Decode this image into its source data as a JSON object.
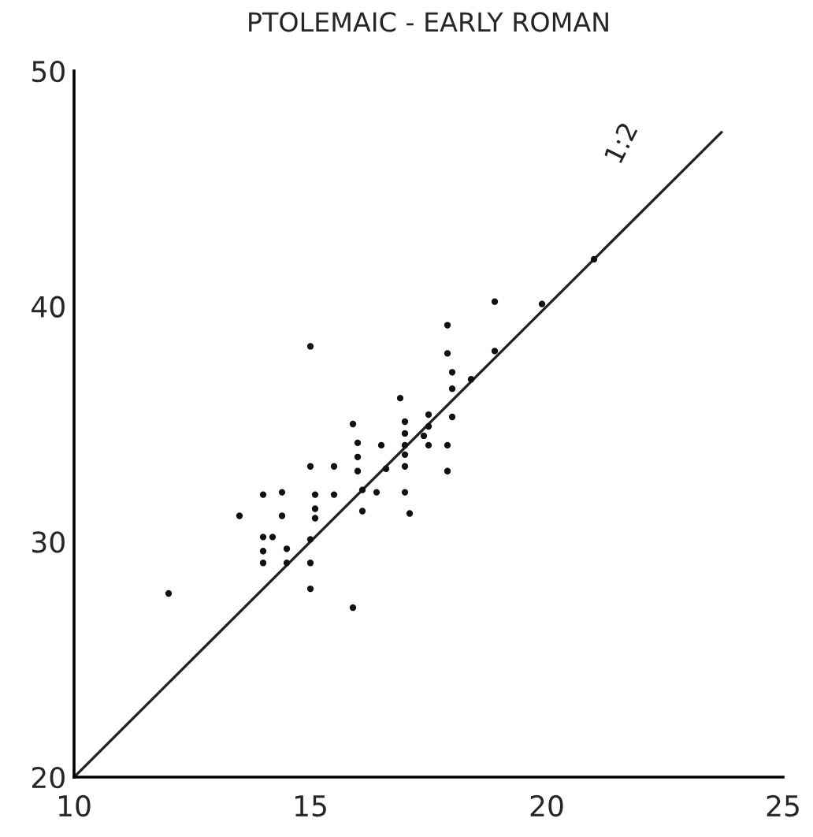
{
  "chart_data": {
    "type": "scatter",
    "title": "PTOLEMAIC - EARLY ROMAN",
    "xlim": [
      10,
      25
    ],
    "xticks": [
      10,
      15,
      20,
      25
    ],
    "ylim": [
      20,
      50
    ],
    "yticks": [
      20,
      30,
      40,
      50
    ],
    "grid": false,
    "legend": false,
    "marker": "circle",
    "series": [
      {
        "color": "#111111",
        "x": [
          12,
          13.5,
          14,
          14,
          14,
          14,
          14.2,
          14.4,
          14.4,
          14.5,
          14.5,
          15,
          15,
          15.1,
          15.1,
          15.1,
          15,
          15,
          15,
          15.5,
          15.5,
          15.9,
          16,
          16,
          16,
          16.1,
          16.4,
          16.1,
          15.9,
          16.5,
          16.6,
          16.9,
          17,
          17,
          17,
          17,
          17,
          17,
          17.1,
          17.5,
          17.5,
          17.4,
          17.5,
          17.9,
          17.9,
          18,
          18,
          18,
          17.9,
          17.9,
          18.4,
          18.9,
          18.9,
          19.9,
          21
        ],
        "values": [
          27.8,
          31.1,
          32.0,
          30.2,
          29.6,
          29.1,
          30.2,
          32.1,
          31.1,
          29.7,
          29.1,
          38.3,
          33.2,
          32.0,
          31.4,
          31.0,
          30.1,
          29.1,
          28.0,
          33.2,
          32.0,
          35.0,
          34.2,
          33.6,
          33.0,
          32.2,
          32.1,
          31.3,
          27.2,
          34.1,
          33.1,
          36.1,
          35.1,
          34.6,
          34.1,
          33.7,
          33.2,
          32.1,
          31.2,
          35.4,
          34.9,
          34.5,
          34.1,
          39.2,
          38.0,
          37.2,
          36.5,
          35.3,
          34.1,
          33.0,
          36.9,
          38.1,
          40.2,
          40.1,
          42.0
        ]
      },
      {
        "type": "line",
        "name": "1:2",
        "color": "#222222",
        "line_style": "solid",
        "marker": "none",
        "x": [
          10,
          23.7
        ],
        "values": [
          20,
          47.4
        ]
      }
    ]
  }
}
